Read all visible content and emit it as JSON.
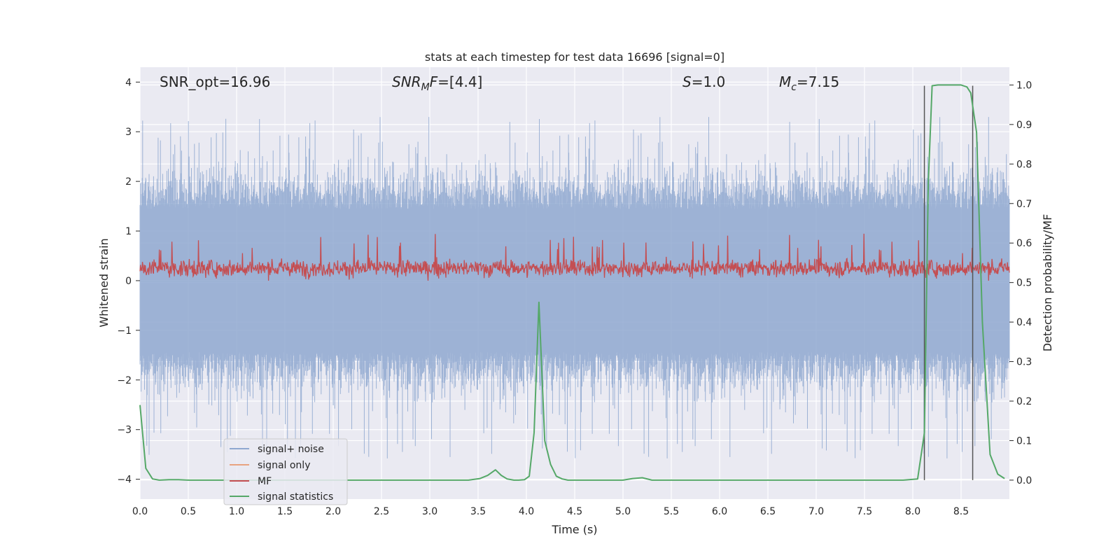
{
  "chart_data": {
    "type": "line",
    "title": "stats at each timestep for test data 16696 [signal=0]",
    "xlabel": "Time (s)",
    "ylabel_left": "Whitened strain",
    "ylabel_right": "Detection probability/MF",
    "xlim": [
      0.0,
      9.0
    ],
    "ylim_left": [
      -4.4,
      4.3
    ],
    "ylim_right": [
      -0.048,
      1.045
    ],
    "grid": true,
    "legend_position": "lower-left",
    "xticks": [
      "0.0",
      "0.5",
      "1.0",
      "1.5",
      "2.0",
      "2.5",
      "3.0",
      "3.5",
      "4.0",
      "4.5",
      "5.0",
      "5.5",
      "6.0",
      "6.5",
      "7.0",
      "7.5",
      "8.0",
      "8.5"
    ],
    "xtick_values": [
      0,
      0.5,
      1,
      1.5,
      2,
      2.5,
      3,
      3.5,
      4,
      4.5,
      5,
      5.5,
      6,
      6.5,
      7,
      7.5,
      8,
      8.5
    ],
    "yticks_left": [
      "4",
      "3",
      "2",
      "1",
      "0",
      "−1",
      "−2",
      "−3",
      "−4"
    ],
    "ytick_values_left": [
      4,
      3,
      2,
      1,
      0,
      -1,
      -2,
      -3,
      -4
    ],
    "yticks_right": [
      "1.0",
      "0.9",
      "0.8",
      "0.7",
      "0.6",
      "0.5",
      "0.4",
      "0.3",
      "0.2",
      "0.1",
      "0.0"
    ],
    "ytick_values_right": [
      1.0,
      0.9,
      0.8,
      0.7,
      0.6,
      0.5,
      0.4,
      0.3,
      0.2,
      0.1,
      0.0
    ],
    "annotations": {
      "snr_opt": "SNR_opt=16.96",
      "snr_mf_italic": "SNR",
      "snr_mf_sub": "M",
      "snr_mf_italic2": "F",
      "snr_mf_rest": "=[4.4]",
      "s_italic": "S",
      "s_rest": "=1.0",
      "mc_italic": "M",
      "mc_sub": "c",
      "mc_rest": "=7.15"
    },
    "legend": [
      "signal+ noise",
      "signal only",
      "MF",
      "signal statistics"
    ],
    "series": [
      {
        "name": "signal statistics",
        "axis": "right",
        "x": [
          0.0,
          0.06,
          0.13,
          0.2,
          0.3,
          0.4,
          0.5,
          0.7,
          1.0,
          1.5,
          2.0,
          2.5,
          3.0,
          3.4,
          3.52,
          3.6,
          3.68,
          3.74,
          3.8,
          3.87,
          3.92,
          3.98,
          4.03,
          4.08,
          4.13,
          4.19,
          4.25,
          4.31,
          4.37,
          4.43,
          4.5,
          4.6,
          4.8,
          5.0,
          5.1,
          5.2,
          5.3,
          5.5,
          6.0,
          6.5,
          7.0,
          7.5,
          7.9,
          8.05,
          8.12,
          8.16,
          8.2,
          8.26,
          8.35,
          8.5,
          8.56,
          8.6,
          8.66,
          8.72,
          8.8,
          8.88,
          8.95
        ],
        "y": [
          0.19,
          0.03,
          0.003,
          0.0,
          0.001,
          0.001,
          0.0,
          0.0,
          0.0,
          0.0,
          0.0,
          0.0,
          0.0,
          0.0,
          0.004,
          0.012,
          0.026,
          0.012,
          0.003,
          0.0,
          0.0,
          0.001,
          0.01,
          0.12,
          0.45,
          0.1,
          0.04,
          0.01,
          0.003,
          0.0,
          0.0,
          0.0,
          0.0,
          0.0,
          0.004,
          0.006,
          0.0,
          0.0,
          0.0,
          0.0,
          0.0,
          0.0,
          0.0,
          0.003,
          0.12,
          0.75,
          0.998,
          1.0,
          1.0,
          1.0,
          0.995,
          0.98,
          0.88,
          0.4,
          0.065,
          0.015,
          0.004
        ]
      },
      {
        "name": "MF detection markers",
        "axis": "right",
        "x": [
          8.12,
          8.62
        ],
        "y0": 0.0,
        "y1": 0.998
      }
    ],
    "noise_envelope": {
      "name": "signal+ noise",
      "axis": "left",
      "typical_range": [
        -1.6,
        1.6
      ],
      "peak_range": [
        -4.0,
        3.35
      ]
    },
    "mf_band": {
      "name": "MF",
      "axis": "left",
      "typical_range": [
        0.0,
        0.55
      ],
      "peak_max": 0.95
    },
    "colors": {
      "noise": "#8fa8d0",
      "signal_only": "#e8a37f",
      "mf": "#c44e52",
      "stats": "#55a868",
      "marker": "#555555",
      "background": "#eaeaf2",
      "grid": "#ffffff"
    }
  }
}
